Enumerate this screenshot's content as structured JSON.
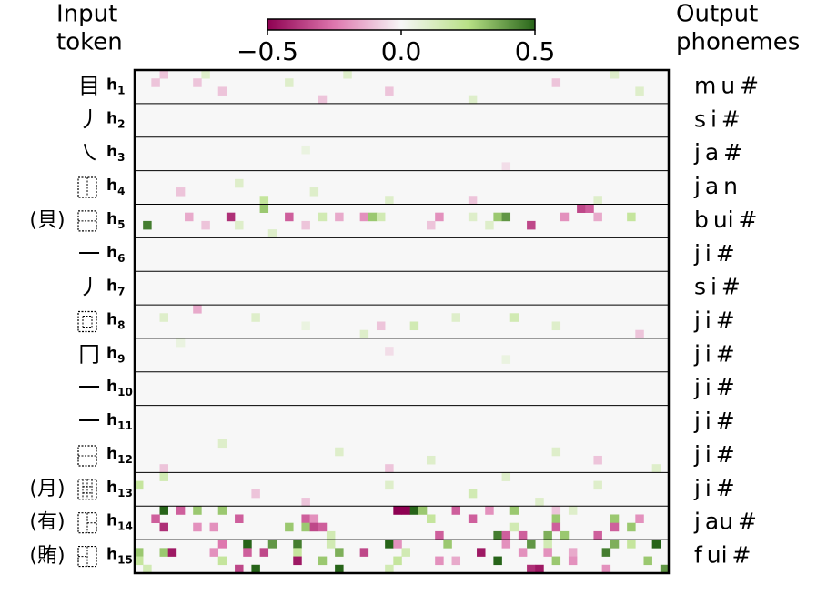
{
  "chart_data": {
    "type": "heatmap",
    "left_header": [
      "Input",
      "token"
    ],
    "right_header": [
      "Output",
      "phonemes"
    ],
    "clim": [
      -0.5,
      0.5
    ],
    "colorbar_ticks": [
      {
        "value": -0.5,
        "label": "−0.5"
      },
      {
        "value": 0,
        "label": "0.0"
      },
      {
        "value": 0.5,
        "label": "0.5"
      }
    ],
    "colormap": [
      "#8e0152",
      "#de77ae",
      "#f7f7f7",
      "#b8e186",
      "#276419"
    ],
    "rows": [
      {
        "char": "目",
        "state": "h",
        "index": "1",
        "phonemes": "m u #",
        "cells": [
          [
            0,
            3,
            -0.1
          ],
          [
            0,
            8,
            0.1
          ],
          [
            1,
            2,
            -0.1
          ],
          [
            1,
            7,
            -0.1
          ],
          [
            1,
            18,
            0.1
          ],
          [
            2,
            10,
            -0.1
          ],
          [
            0,
            25,
            0.1
          ],
          [
            2,
            30,
            -0.1
          ],
          [
            3,
            40,
            0.1
          ],
          [
            1,
            50,
            -0.1
          ],
          [
            0,
            57,
            0.1
          ],
          [
            2,
            60,
            0.1
          ],
          [
            3,
            22,
            -0.1
          ]
        ]
      },
      {
        "char": "丿",
        "state": "h",
        "index": "2",
        "phonemes": "s i #",
        "cells": []
      },
      {
        "char": "㇏",
        "state": "h",
        "index": "3",
        "phonemes": "j a #",
        "cells": [
          [
            1,
            20,
            0.05
          ],
          [
            3,
            44,
            -0.05
          ]
        ]
      },
      {
        "state": "h",
        "index": "4",
        "phonemes": "j a n",
        "cells": [
          [
            3,
            15,
            0.2
          ],
          [
            2,
            21,
            0.1
          ],
          [
            3,
            30,
            0.1
          ],
          [
            1,
            12,
            0.1
          ],
          [
            3,
            40,
            -0.1
          ],
          [
            2,
            5,
            -0.1
          ],
          [
            3,
            55,
            0.1
          ]
        ]
      },
      {
        "radical": "(貝)",
        "state": "h",
        "index": "5",
        "phonemes": "b ui #",
        "cells": [
          [
            0,
            15,
            0.3
          ],
          [
            0,
            53,
            -0.35
          ],
          [
            0,
            54,
            -0.3
          ],
          [
            1,
            6,
            -0.15
          ],
          [
            1,
            11,
            -0.4
          ],
          [
            1,
            18,
            -0.3
          ],
          [
            1,
            22,
            0.15
          ],
          [
            1,
            24,
            -0.15
          ],
          [
            1,
            27,
            -0.2
          ],
          [
            1,
            28,
            0.3
          ],
          [
            1,
            29,
            0.15
          ],
          [
            1,
            36,
            -0.2
          ],
          [
            1,
            40,
            0.1
          ],
          [
            1,
            43,
            0.3
          ],
          [
            1,
            44,
            0.4
          ],
          [
            1,
            51,
            -0.2
          ],
          [
            1,
            55,
            -0.15
          ],
          [
            1,
            59,
            0.2
          ],
          [
            2,
            1,
            0.45
          ],
          [
            2,
            8,
            -0.1
          ],
          [
            2,
            12,
            0.1
          ],
          [
            2,
            20,
            -0.1
          ],
          [
            2,
            35,
            -0.1
          ],
          [
            2,
            47,
            -0.35
          ],
          [
            2,
            42,
            0.1
          ],
          [
            3,
            16,
            0.1
          ]
        ]
      },
      {
        "char": "一",
        "state": "h",
        "index": "6",
        "phonemes": "j i #",
        "cells": []
      },
      {
        "char": "丿",
        "state": "h",
        "index": "7",
        "phonemes": "s i #",
        "cells": []
      },
      {
        "state": "h",
        "index": "8",
        "phonemes": "j i #",
        "cells": [
          [
            0,
            7,
            -0.15
          ],
          [
            1,
            3,
            0.1
          ],
          [
            1,
            14,
            0.1
          ],
          [
            2,
            33,
            0.15
          ],
          [
            2,
            29,
            -0.1
          ],
          [
            3,
            27,
            0.1
          ],
          [
            1,
            45,
            0.15
          ],
          [
            2,
            50,
            0.1
          ],
          [
            3,
            60,
            -0.1
          ],
          [
            1,
            38,
            0.1
          ],
          [
            2,
            20,
            0.05
          ]
        ]
      },
      {
        "char": "冂",
        "state": "h",
        "index": "9",
        "phonemes": "j i #",
        "cells": [
          [
            0,
            5,
            0.05
          ],
          [
            1,
            30,
            -0.05
          ],
          [
            2,
            44,
            0.05
          ]
        ]
      },
      {
        "char": "一",
        "state": "h",
        "index": "10",
        "phonemes": "j i #",
        "cells": []
      },
      {
        "char": "一",
        "state": "h",
        "index": "11",
        "phonemes": "j i #",
        "cells": []
      },
      {
        "state": "h",
        "index": "12",
        "phonemes": "j i #",
        "cells": [
          [
            0,
            10,
            0.1
          ],
          [
            1,
            24,
            0.1
          ],
          [
            2,
            35,
            0.1
          ],
          [
            3,
            3,
            -0.1
          ],
          [
            3,
            30,
            -0.1
          ],
          [
            1,
            50,
            0.1
          ],
          [
            2,
            55,
            -0.1
          ],
          [
            3,
            62,
            0.1
          ]
        ]
      },
      {
        "radical": "(月)",
        "state": "h",
        "index": "13",
        "phonemes": "j i #",
        "cells": [
          [
            0,
            3,
            0.15
          ],
          [
            1,
            0,
            0.2
          ],
          [
            2,
            14,
            -0.1
          ],
          [
            1,
            30,
            0.1
          ],
          [
            2,
            40,
            0.15
          ],
          [
            3,
            20,
            -0.1
          ],
          [
            1,
            55,
            0.1
          ],
          [
            3,
            48,
            0.1
          ],
          [
            0,
            44,
            0.1
          ]
        ]
      },
      {
        "radical": "(有)",
        "state": "h",
        "index": "14",
        "phonemes": "j au #",
        "cells": [
          [
            0,
            3,
            0.5
          ],
          [
            0,
            5,
            -0.3
          ],
          [
            0,
            7,
            0.3
          ],
          [
            0,
            10,
            0.3
          ],
          [
            0,
            31,
            -0.5
          ],
          [
            0,
            32,
            -0.5
          ],
          [
            0,
            33,
            0.5
          ],
          [
            0,
            34,
            0.3
          ],
          [
            0,
            38,
            -0.3
          ],
          [
            0,
            42,
            -0.2
          ],
          [
            0,
            45,
            0.3
          ],
          [
            0,
            50,
            -0.1
          ],
          [
            0,
            52,
            0.1
          ],
          [
            1,
            2,
            -0.3
          ],
          [
            1,
            12,
            -0.3
          ],
          [
            1,
            20,
            -0.3
          ],
          [
            1,
            21,
            -0.2
          ],
          [
            1,
            35,
            0.2
          ],
          [
            1,
            40,
            -0.3
          ],
          [
            1,
            50,
            0.3
          ],
          [
            1,
            57,
            0.3
          ],
          [
            1,
            60,
            -0.2
          ],
          [
            2,
            3,
            -0.4
          ],
          [
            2,
            7,
            -0.2
          ],
          [
            2,
            9,
            -0.2
          ],
          [
            2,
            18,
            0.3
          ],
          [
            2,
            20,
            0.3
          ],
          [
            2,
            21,
            -0.35
          ],
          [
            2,
            22,
            -0.3
          ],
          [
            2,
            45,
            0.15
          ],
          [
            2,
            50,
            -0.3
          ],
          [
            2,
            57,
            -0.3
          ],
          [
            2,
            59,
            0.3
          ],
          [
            3,
            23,
            0.15
          ],
          [
            3,
            36,
            -0.3
          ],
          [
            3,
            43,
            0.45
          ],
          [
            3,
            44,
            -0.3
          ],
          [
            3,
            49,
            0.35
          ],
          [
            3,
            46,
            -0.3
          ],
          [
            3,
            51,
            0.3
          ],
          [
            3,
            55,
            -0.3
          ]
        ]
      },
      {
        "radical": "(賄)",
        "state": "h",
        "index": "15",
        "phonemes": "f ui #",
        "cells": [
          [
            0,
            13,
            0.5
          ],
          [
            0,
            10,
            -0.25
          ],
          [
            0,
            16,
            0.4
          ],
          [
            0,
            19,
            0.45
          ],
          [
            0,
            23,
            0.15
          ],
          [
            0,
            30,
            0.5
          ],
          [
            0,
            31,
            -0.2
          ],
          [
            0,
            37,
            0.3
          ],
          [
            0,
            44,
            -0.2
          ],
          [
            0,
            47,
            0.4
          ],
          [
            0,
            49,
            0.15
          ],
          [
            0,
            57,
            0.35
          ],
          [
            0,
            59,
            0.2
          ],
          [
            0,
            62,
            0.5
          ],
          [
            1,
            0,
            0.3
          ],
          [
            1,
            3,
            0.3
          ],
          [
            1,
            4,
            -0.45
          ],
          [
            1,
            9,
            -0.2
          ],
          [
            1,
            13,
            -0.3
          ],
          [
            1,
            15,
            -0.35
          ],
          [
            1,
            19,
            0.2
          ],
          [
            1,
            24,
            0.35
          ],
          [
            1,
            27,
            -0.35
          ],
          [
            1,
            32,
            0.15
          ],
          [
            1,
            41,
            -0.45
          ],
          [
            1,
            46,
            -0.2
          ],
          [
            1,
            49,
            -0.2
          ],
          [
            1,
            52,
            -0.15
          ],
          [
            1,
            56,
            0.45
          ],
          [
            2,
            0,
            0.2
          ],
          [
            2,
            10,
            0.2
          ],
          [
            2,
            19,
            -0.45
          ],
          [
            2,
            22,
            0.3
          ],
          [
            2,
            31,
            0.2
          ],
          [
            2,
            36,
            -0.2
          ],
          [
            2,
            38,
            -0.15
          ],
          [
            2,
            43,
            0.5
          ],
          [
            2,
            50,
            0.3
          ],
          [
            2,
            52,
            -0.2
          ],
          [
            2,
            61,
            0.3
          ],
          [
            3,
            1,
            0.15
          ],
          [
            3,
            12,
            -0.35
          ],
          [
            3,
            14,
            0.5
          ],
          [
            3,
            24,
            0.5
          ],
          [
            3,
            30,
            0.15
          ],
          [
            3,
            47,
            -0.4
          ],
          [
            3,
            48,
            -0.45
          ],
          [
            3,
            56,
            -0.2
          ],
          [
            3,
            63,
            0.4
          ]
        ]
      }
    ]
  }
}
